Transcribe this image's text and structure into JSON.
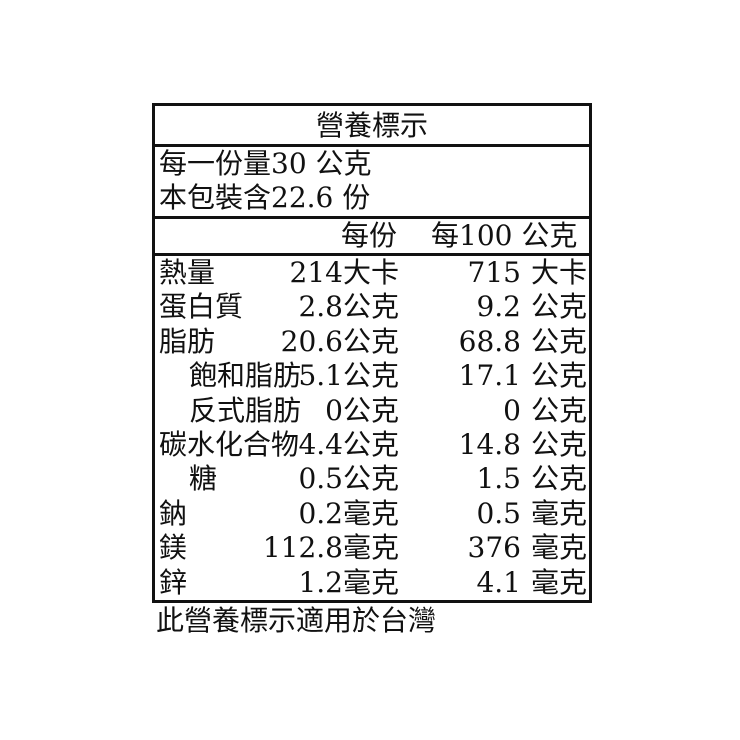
{
  "title": "營養標示",
  "serving_size": "每一份量30 公克",
  "servings_per_package": "本包裝含22.6 份",
  "headers": {
    "per_serving": "每份",
    "per_100g": "每100 公克"
  },
  "rows": [
    {
      "name": "熱量",
      "indent": false,
      "per_serving": "214",
      "unit_serving": "大卡",
      "per_100g": "715",
      "unit_100g": "大卡"
    },
    {
      "name": "蛋白質",
      "indent": false,
      "per_serving": "2.8",
      "unit_serving": "公克",
      "per_100g": "9.2",
      "unit_100g": "公克"
    },
    {
      "name": "脂肪",
      "indent": false,
      "per_serving": "20.6",
      "unit_serving": "公克",
      "per_100g": "68.8",
      "unit_100g": "公克"
    },
    {
      "name": "飽和脂肪",
      "indent": true,
      "per_serving": "5.1",
      "unit_serving": "公克",
      "per_100g": "17.1",
      "unit_100g": "公克"
    },
    {
      "name": "反式脂肪",
      "indent": true,
      "per_serving": "0",
      "unit_serving": "公克",
      "per_100g": "0",
      "unit_100g": "公克"
    },
    {
      "name": "碳水化合物",
      "indent": false,
      "per_serving": "4.4",
      "unit_serving": "公克",
      "per_100g": "14.8",
      "unit_100g": "公克"
    },
    {
      "name": "糖",
      "indent": true,
      "per_serving": "0.5",
      "unit_serving": "公克",
      "per_100g": "1.5",
      "unit_100g": "公克"
    },
    {
      "name": "鈉",
      "indent": false,
      "per_serving": "0.2",
      "unit_serving": "毫克",
      "per_100g": "0.5",
      "unit_100g": "毫克"
    },
    {
      "name": "鎂",
      "indent": false,
      "per_serving": "112.8",
      "unit_serving": "毫克",
      "per_100g": "376",
      "unit_100g": "毫克"
    },
    {
      "name": "鋅",
      "indent": false,
      "per_serving": "1.2",
      "unit_serving": "毫克",
      "per_100g": "4.1",
      "unit_100g": "毫克"
    }
  ],
  "footer": "此營養標示適用於台灣"
}
